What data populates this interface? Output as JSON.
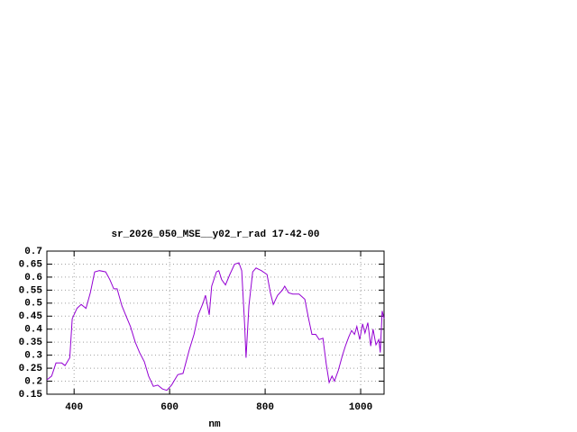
{
  "chart_data": {
    "type": "line",
    "title": "sr_2026_050_MSE__y02_r_rad 17-42-00",
    "x_label": "nm",
    "x": [
      343,
      353,
      362,
      374,
      381,
      391,
      396,
      406,
      415,
      425,
      434,
      443,
      453,
      466,
      475,
      483,
      490,
      500,
      509,
      518,
      528,
      537,
      547,
      556,
      566,
      575,
      585,
      594,
      604,
      617,
      628,
      641,
      651,
      660,
      670,
      675,
      683,
      688,
      698,
      703,
      709,
      717,
      726,
      736,
      745,
      751,
      757,
      760,
      766,
      774,
      781,
      792,
      804,
      811,
      817,
      826,
      836,
      841,
      849,
      858,
      871,
      883,
      891,
      898,
      906,
      913,
      921,
      928,
      934,
      940,
      945,
      953,
      962,
      968,
      975,
      981,
      987,
      992,
      998,
      1004,
      1009,
      1015,
      1021,
      1026,
      1032,
      1038,
      1041,
      1045,
      1049
    ],
    "series": [
      {
        "color": "#9400d3",
        "values": [
          0.205,
          0.22,
          0.27,
          0.27,
          0.26,
          0.29,
          0.44,
          0.48,
          0.495,
          0.48,
          0.54,
          0.62,
          0.625,
          0.62,
          0.59,
          0.555,
          0.555,
          0.49,
          0.45,
          0.41,
          0.35,
          0.31,
          0.275,
          0.22,
          0.18,
          0.185,
          0.17,
          0.165,
          0.185,
          0.225,
          0.23,
          0.32,
          0.38,
          0.455,
          0.5,
          0.53,
          0.455,
          0.565,
          0.62,
          0.625,
          0.59,
          0.57,
          0.61,
          0.65,
          0.655,
          0.625,
          0.42,
          0.29,
          0.49,
          0.62,
          0.635,
          0.625,
          0.61,
          0.54,
          0.495,
          0.53,
          0.55,
          0.565,
          0.54,
          0.535,
          0.535,
          0.515,
          0.44,
          0.38,
          0.38,
          0.36,
          0.365,
          0.265,
          0.195,
          0.22,
          0.2,
          0.24,
          0.3,
          0.335,
          0.37,
          0.395,
          0.38,
          0.41,
          0.36,
          0.42,
          0.385,
          0.425,
          0.335,
          0.4,
          0.34,
          0.36,
          0.31,
          0.47,
          0.44
        ]
      }
    ],
    "xlim": [
      343,
      1049
    ],
    "xticks": [
      400,
      600,
      800,
      1000
    ],
    "ylim": [
      0.15,
      0.7
    ],
    "yticks": [
      0.15,
      0.2,
      0.25,
      0.3,
      0.35,
      0.4,
      0.45,
      0.5,
      0.55,
      0.6,
      0.65,
      0.7
    ],
    "grid": true
  }
}
